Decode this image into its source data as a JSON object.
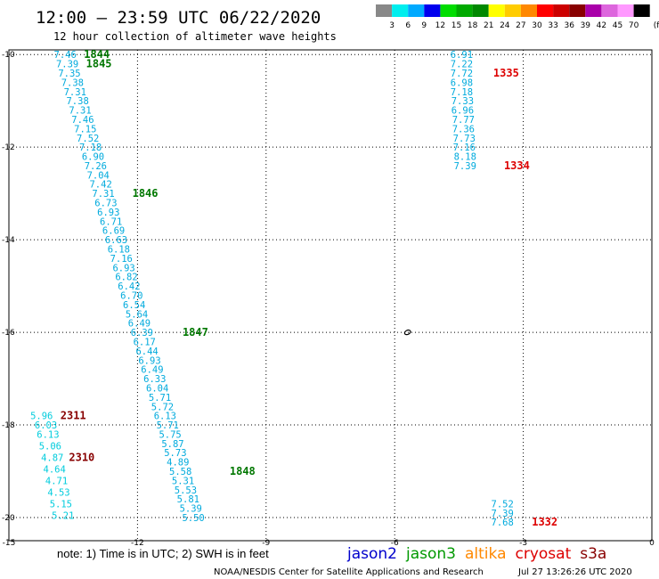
{
  "header": {
    "title": "12:00 — 23:59 UTC 06/22/2020",
    "subtitle": "12 hour collection of altimeter wave heights"
  },
  "legend": {
    "unit": "(ft)",
    "colors": [
      "#888888",
      "#00eeee",
      "#00aaff",
      "#0000ee",
      "#00dd00",
      "#00aa00",
      "#008800",
      "#ffff00",
      "#ffcc00",
      "#ff8800",
      "#ff0000",
      "#cc0000",
      "#880000",
      "#aa00aa",
      "#dd66dd",
      "#ff99ff",
      "#000000"
    ],
    "labels": [
      "3",
      "6",
      "9",
      "12",
      "15",
      "18",
      "21",
      "24",
      "27",
      "30",
      "33",
      "36",
      "39",
      "42",
      "45",
      "70"
    ]
  },
  "map": {
    "x_ticks": [
      {
        "lon": -15,
        "label": "-15"
      },
      {
        "lon": -12,
        "label": "-12"
      },
      {
        "lon": -9,
        "label": "-9"
      },
      {
        "lon": -6,
        "label": "-6"
      },
      {
        "lon": -3,
        "label": "-3"
      },
      {
        "lon": 0,
        "label": "0"
      }
    ],
    "y_ticks": [
      {
        "lat": -10,
        "label": "-10"
      },
      {
        "lat": -12,
        "label": "-12"
      },
      {
        "lat": -14,
        "label": "-14"
      },
      {
        "lat": -16,
        "label": "-16"
      },
      {
        "lat": -18,
        "label": "-18"
      },
      {
        "lat": -20,
        "label": "-20"
      }
    ]
  },
  "chart_data": {
    "type": "scatter",
    "description_units": "SWH in feet, positions in degrees lon/lat",
    "xlim": [
      -15,
      0
    ],
    "ylim": [
      -20.5,
      -9.9
    ],
    "tracks": [
      {
        "satellite": "jason3",
        "color": "#00aadd",
        "points": [
          {
            "lon": -13.95,
            "lat": -10.0,
            "value": "7.46"
          },
          {
            "lon": -13.9,
            "lat": -10.2,
            "value": "7.39"
          },
          {
            "lon": -13.85,
            "lat": -10.4,
            "value": "7.35"
          },
          {
            "lon": -13.78,
            "lat": -10.6,
            "value": "7.38"
          },
          {
            "lon": -13.72,
            "lat": -10.8,
            "value": "7.31"
          },
          {
            "lon": -13.66,
            "lat": -11.0,
            "value": "7.38"
          },
          {
            "lon": -13.6,
            "lat": -11.2,
            "value": "7.31"
          },
          {
            "lon": -13.54,
            "lat": -11.4,
            "value": "7.46"
          },
          {
            "lon": -13.48,
            "lat": -11.6,
            "value": "7.15"
          },
          {
            "lon": -13.42,
            "lat": -11.8,
            "value": "7.52"
          },
          {
            "lon": -13.36,
            "lat": -12.0,
            "value": "7.18"
          },
          {
            "lon": -13.3,
            "lat": -12.2,
            "value": "6.90"
          },
          {
            "lon": -13.24,
            "lat": -12.4,
            "value": "7.26"
          },
          {
            "lon": -13.18,
            "lat": -12.6,
            "value": "7.04"
          },
          {
            "lon": -13.12,
            "lat": -12.8,
            "value": "7.42"
          },
          {
            "lon": -13.06,
            "lat": -13.0,
            "value": "7.31"
          },
          {
            "lon": -13.0,
            "lat": -13.2,
            "value": "6.73"
          },
          {
            "lon": -12.94,
            "lat": -13.4,
            "value": "6.93"
          },
          {
            "lon": -12.88,
            "lat": -13.6,
            "value": "6.71"
          },
          {
            "lon": -12.82,
            "lat": -13.8,
            "value": "6.69"
          },
          {
            "lon": -12.76,
            "lat": -14.0,
            "value": "6.63"
          },
          {
            "lon": -12.7,
            "lat": -14.2,
            "value": "6.18"
          },
          {
            "lon": -12.64,
            "lat": -14.4,
            "value": "7.16"
          },
          {
            "lon": -12.58,
            "lat": -14.6,
            "value": "6.93"
          },
          {
            "lon": -12.52,
            "lat": -14.8,
            "value": "6.82"
          },
          {
            "lon": -12.46,
            "lat": -15.0,
            "value": "6.42"
          },
          {
            "lon": -12.4,
            "lat": -15.2,
            "value": "6.70"
          },
          {
            "lon": -12.34,
            "lat": -15.4,
            "value": "6.54"
          },
          {
            "lon": -12.28,
            "lat": -15.6,
            "value": "5.64"
          },
          {
            "lon": -12.22,
            "lat": -15.8,
            "value": "6.49"
          },
          {
            "lon": -12.16,
            "lat": -16.0,
            "value": "6.39"
          },
          {
            "lon": -12.1,
            "lat": -16.2,
            "value": "6.17"
          },
          {
            "lon": -12.04,
            "lat": -16.4,
            "value": "6.44"
          },
          {
            "lon": -11.98,
            "lat": -16.6,
            "value": "6.93"
          },
          {
            "lon": -11.92,
            "lat": -16.8,
            "value": "6.49"
          },
          {
            "lon": -11.86,
            "lat": -17.0,
            "value": "6.33"
          },
          {
            "lon": -11.8,
            "lat": -17.2,
            "value": "6.04"
          },
          {
            "lon": -11.74,
            "lat": -17.4,
            "value": "5.71"
          },
          {
            "lon": -11.68,
            "lat": -17.6,
            "value": "5.72"
          },
          {
            "lon": -11.62,
            "lat": -17.8,
            "value": "6.13"
          },
          {
            "lon": -11.56,
            "lat": -18.0,
            "value": "5.71"
          },
          {
            "lon": -11.5,
            "lat": -18.2,
            "value": "5.75"
          },
          {
            "lon": -11.44,
            "lat": -18.4,
            "value": "5.87"
          },
          {
            "lon": -11.38,
            "lat": -18.6,
            "value": "5.73"
          },
          {
            "lon": -11.32,
            "lat": -18.8,
            "value": "4.89"
          },
          {
            "lon": -11.26,
            "lat": -19.0,
            "value": "5.58"
          },
          {
            "lon": -11.2,
            "lat": -19.2,
            "value": "5.31"
          },
          {
            "lon": -11.14,
            "lat": -19.4,
            "value": "5.53"
          },
          {
            "lon": -11.08,
            "lat": -19.6,
            "value": "5.81"
          },
          {
            "lon": -11.02,
            "lat": -19.8,
            "value": "5.39"
          },
          {
            "lon": -10.96,
            "lat": -20.0,
            "value": "5.50"
          }
        ],
        "time_labels": [
          {
            "lon": -13.25,
            "lat": -10.0,
            "text": "1844"
          },
          {
            "lon": -13.2,
            "lat": -10.2,
            "text": "1845"
          },
          {
            "lon": -12.12,
            "lat": -13.0,
            "text": "1846"
          },
          {
            "lon": -10.95,
            "lat": -16.0,
            "text": "1847"
          },
          {
            "lon": -9.85,
            "lat": -19.0,
            "text": "1848"
          }
        ],
        "time_color": "#007700"
      },
      {
        "satellite": "cryosat",
        "color": "#00aadd",
        "points": [
          {
            "lon": -4.7,
            "lat": -10.0,
            "value": "6.91"
          },
          {
            "lon": -4.7,
            "lat": -10.2,
            "value": "7.22"
          },
          {
            "lon": -4.7,
            "lat": -10.4,
            "value": "7.72"
          },
          {
            "lon": -4.7,
            "lat": -10.6,
            "value": "6.98"
          },
          {
            "lon": -4.7,
            "lat": -10.8,
            "value": "7.18"
          },
          {
            "lon": -4.68,
            "lat": -11.0,
            "value": "7.33"
          },
          {
            "lon": -4.68,
            "lat": -11.2,
            "value": "6.96"
          },
          {
            "lon": -4.66,
            "lat": -11.4,
            "value": "7.77"
          },
          {
            "lon": -4.66,
            "lat": -11.6,
            "value": "7.36"
          },
          {
            "lon": -4.64,
            "lat": -11.8,
            "value": "7.73"
          },
          {
            "lon": -4.64,
            "lat": -12.0,
            "value": "7.16"
          },
          {
            "lon": -4.62,
            "lat": -12.2,
            "value": "8.18"
          },
          {
            "lon": -4.62,
            "lat": -12.4,
            "value": "7.39"
          },
          {
            "lon": -3.75,
            "lat": -19.7,
            "value": "7.52"
          },
          {
            "lon": -3.75,
            "lat": -19.9,
            "value": "7.39"
          },
          {
            "lon": -3.75,
            "lat": -20.1,
            "value": "7.68"
          }
        ],
        "time_labels": [
          {
            "lon": -3.7,
            "lat": -10.4,
            "text": "1335"
          },
          {
            "lon": -3.45,
            "lat": -12.4,
            "text": "1334"
          },
          {
            "lon": -2.8,
            "lat": -20.1,
            "text": "1332"
          }
        ],
        "time_color": "#dd0000"
      },
      {
        "satellite": "s3a",
        "color": "#00ccdd",
        "points": [
          {
            "lon": -14.5,
            "lat": -17.8,
            "value": "5.96"
          },
          {
            "lon": -14.4,
            "lat": -18.0,
            "value": "6.03"
          },
          {
            "lon": -14.35,
            "lat": -18.2,
            "value": "6.13"
          },
          {
            "lon": -14.3,
            "lat": -18.45,
            "value": "5.06"
          },
          {
            "lon": -14.25,
            "lat": -18.7,
            "value": "4.87"
          },
          {
            "lon": -14.2,
            "lat": -18.95,
            "value": "4.64"
          },
          {
            "lon": -14.15,
            "lat": -19.2,
            "value": "4.71"
          },
          {
            "lon": -14.1,
            "lat": -19.45,
            "value": "4.53"
          },
          {
            "lon": -14.05,
            "lat": -19.7,
            "value": "5.15"
          },
          {
            "lon": -14.0,
            "lat": -19.95,
            "value": "5.21"
          }
        ],
        "time_labels": [
          {
            "lon": -13.8,
            "lat": -17.8,
            "text": "2311"
          },
          {
            "lon": -13.6,
            "lat": -18.7,
            "text": "2310"
          }
        ],
        "time_color": "#880000"
      }
    ]
  },
  "island": {
    "lon": -5.7,
    "lat": -16.0,
    "name": "island-outline"
  },
  "footer": {
    "note": "note: 1) Time is in UTC; 2) SWH is in feet",
    "credit": "NOAA/NESDIS Center for Satellite Applications and Research",
    "timestamp": "Jul 27 13:26:26 UTC 2020",
    "satellites": [
      {
        "name": "jason2",
        "color": "#0000cc"
      },
      {
        "name": "jason3",
        "color": "#009900"
      },
      {
        "name": "altika",
        "color": "#ff8800"
      },
      {
        "name": "cryosat",
        "color": "#dd0000"
      },
      {
        "name": "s3a",
        "color": "#880000"
      }
    ]
  }
}
